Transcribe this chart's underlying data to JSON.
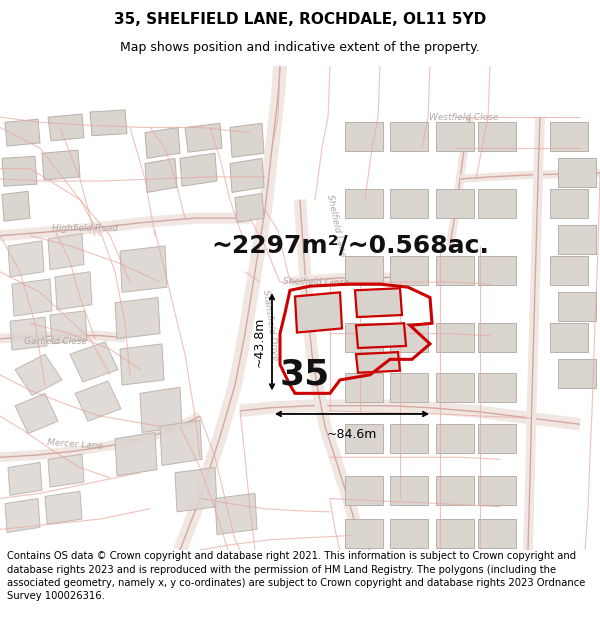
{
  "title": "35, SHELFIELD LANE, ROCHDALE, OL11 5YD",
  "subtitle": "Map shows position and indicative extent of the property.",
  "area_label": "~2297m²/~0.568ac.",
  "number_label": "35",
  "dim_v": "~43.8m",
  "dim_h": "~84.6m",
  "footer": "Contains OS data © Crown copyright and database right 2021. This information is subject to Crown copyright and database rights 2023 and is reproduced with the permission of HM Land Registry. The polygons (including the associated geometry, namely x, y co-ordinates) are subject to Crown copyright and database rights 2023 Ordnance Survey 100026316.",
  "map_bg": "#f7f4f2",
  "road_fill": "#f0e6e2",
  "road_edge": "#d4a8a0",
  "bld_fill": "#dbd5d0",
  "bld_edge": "#b8b0aa",
  "hi_color": "#cc0000",
  "cadastral": "#e8a8a0",
  "title_fontsize": 11,
  "subtitle_fontsize": 9,
  "area_fontsize": 18,
  "number_fontsize": 26,
  "footer_fontsize": 7.2,
  "dim_fontsize": 9,
  "road_label_fontsize": 6.5,
  "road_label_color": "#b0a8a5"
}
